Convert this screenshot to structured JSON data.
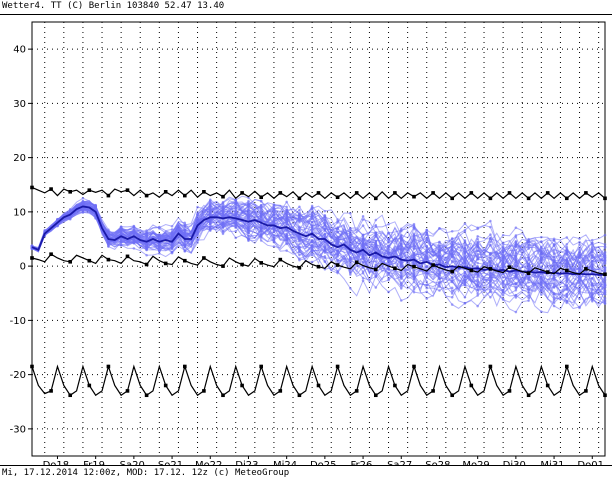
{
  "header": {
    "title": "Wetter4. TT (C) Berlin 103840 52.47 13.40"
  },
  "footer": {
    "text": "Mi, 17.12.2014 12:00z, MOD: 17.12. 12z (c) MeteoGroup"
  },
  "colors": {
    "ensemble": "#6f6ff5",
    "ensemble_mean": "#1a1aa8",
    "climate": "#000000",
    "grid": "#000000"
  },
  "chart_data": {
    "type": "line",
    "title": "",
    "xlabel": "",
    "ylabel": "",
    "ylim": [
      -35,
      45
    ],
    "yticks": [
      -30,
      -20,
      -10,
      0,
      10,
      20,
      30,
      40
    ],
    "x_range": [
      0,
      90
    ],
    "x_unit": "steps of 6 hours from Mi 17.12.2014 12:00z",
    "day_labels": [
      {
        "label": "Do18.",
        "x": 4
      },
      {
        "label": "Fr19.",
        "x": 10
      },
      {
        "label": "Sa20.",
        "x": 16
      },
      {
        "label": "So21.",
        "x": 22
      },
      {
        "label": "Mo22.",
        "x": 28
      },
      {
        "label": "Di23.",
        "x": 34
      },
      {
        "label": "Mi24.",
        "x": 40
      },
      {
        "label": "Do25.",
        "x": 46
      },
      {
        "label": "Fr26.",
        "x": 52
      },
      {
        "label": "Sa27.",
        "x": 58
      },
      {
        "label": "So28.",
        "x": 64
      },
      {
        "label": "Mo29.",
        "x": 70
      },
      {
        "label": "Di30.",
        "x": 76
      },
      {
        "label": "Mi31.",
        "x": 82
      },
      {
        "label": "Do01.",
        "x": 88
      }
    ],
    "grid": true,
    "series": [
      {
        "role": "climate-high",
        "values": [
          14.5,
          14,
          13.5,
          14.2,
          13,
          14.2,
          13.7,
          14,
          13.2,
          14,
          13.6,
          14,
          13,
          14.2,
          13.7,
          14,
          13,
          14,
          13,
          13.5,
          12.7,
          13.7,
          13,
          14,
          13,
          14,
          12.7,
          13.7,
          13,
          13.5,
          12.8,
          14,
          12.5,
          13.5,
          12.8,
          13.8,
          12.7,
          13.5,
          12.5,
          13.5,
          12.8,
          13.7,
          12.5,
          13.5,
          12.7,
          13.5,
          12.5,
          13.5,
          12.7,
          13.5,
          12.5,
          13.5,
          12.5,
          13.5,
          12.5,
          13.7,
          12.5,
          13.5,
          12.5,
          13.5,
          12.8,
          13.5,
          12.5,
          13.5,
          12.5,
          13.5,
          12.5,
          13.5,
          12.5,
          13.5,
          12.5,
          13.5,
          12.5,
          13.5,
          12.5,
          13.5,
          12.5,
          13.5,
          12.5,
          13.5,
          12.5,
          13.5,
          12.5,
          13.5,
          12.5,
          13.5,
          12.5,
          13.5,
          12.7,
          13.5,
          12.5
        ]
      },
      {
        "role": "climate-low",
        "values": [
          1.5,
          1.2,
          0.8,
          2.2,
          1.5,
          1,
          0.8,
          2,
          1.5,
          1,
          0.5,
          2,
          1.2,
          1,
          0.5,
          1.8,
          1,
          0.8,
          0.3,
          1.8,
          1,
          0.5,
          0.3,
          1.7,
          1,
          0.5,
          0.2,
          1.5,
          0.8,
          0.3,
          0,
          1.5,
          0.8,
          0.3,
          0,
          1.4,
          0.6,
          0.2,
          -0.1,
          1.2,
          0.5,
          0,
          -0.3,
          1,
          0.3,
          -0.1,
          -0.4,
          0.8,
          0.2,
          -0.2,
          -0.5,
          0.7,
          0.1,
          -0.3,
          -0.6,
          0.5,
          0,
          -0.4,
          -0.8,
          0.3,
          -0.1,
          -0.5,
          -0.9,
          0.2,
          -0.3,
          -0.7,
          -1,
          0,
          -0.4,
          -0.8,
          -1.1,
          -0.1,
          -0.5,
          -0.9,
          -1.2,
          -0.2,
          -0.6,
          -1,
          -1.3,
          -0.3,
          -0.7,
          -1.1,
          -1.4,
          -0.4,
          -0.8,
          -1.2,
          -1.5,
          -0.5,
          -0.9,
          -1.3,
          -1.5
        ]
      },
      {
        "role": "climate-min",
        "values": [
          -18.5,
          -22,
          -23.5,
          -23,
          -18.5,
          -22,
          -23.8,
          -23,
          -18.5,
          -22,
          -23.8,
          -23,
          -18.5,
          -22,
          -23.8,
          -23,
          -18.5,
          -22,
          -23.8,
          -23,
          -18.5,
          -22,
          -23.8,
          -23,
          -18.5,
          -22,
          -23.8,
          -23,
          -18.5,
          -22,
          -23.8,
          -23,
          -18.5,
          -22,
          -23.8,
          -23,
          -18.5,
          -22,
          -23.8,
          -23,
          -18.5,
          -22,
          -23.8,
          -23,
          -18.5,
          -22,
          -23.8,
          -23,
          -18.5,
          -22,
          -23.8,
          -23,
          -18.5,
          -22,
          -23.8,
          -23,
          -18.5,
          -22,
          -23.8,
          -23,
          -18.5,
          -22,
          -23.8,
          -23,
          -18.5,
          -22,
          -23.8,
          -23,
          -18.5,
          -22,
          -23.8,
          -23,
          -18.5,
          -22,
          -23.8,
          -23,
          -18.5,
          -22,
          -23.8,
          -23,
          -18.5,
          -22,
          -23.8,
          -23,
          -18.5,
          -22,
          -23.8,
          -23,
          -18.5,
          -22,
          -23.8
        ]
      },
      {
        "role": "ensemble-mean",
        "values": [
          3.5,
          3,
          6,
          7,
          8,
          9,
          9.5,
          10.5,
          11,
          10.8,
          10,
          7,
          5,
          4.8,
          5.5,
          5,
          5.5,
          4.8,
          4.5,
          5,
          4.5,
          4.8,
          4.5,
          6,
          5,
          5,
          7.5,
          8.5,
          9,
          9,
          8.8,
          9,
          8.8,
          8.5,
          8.2,
          8.5,
          8,
          7.5,
          7.5,
          7,
          7.2,
          6.5,
          6,
          5.5,
          6,
          5,
          5,
          4,
          3.5,
          4,
          3,
          2.5,
          3,
          2,
          2.5,
          1.8,
          1.5,
          1.8,
          1.2,
          1,
          1.2,
          0.5,
          0.8,
          0.2,
          0.3,
          -0.2,
          0,
          -0.3,
          -0.2,
          -0.5,
          -0.4,
          -0.7,
          -0.5,
          -0.8,
          -0.7,
          -1,
          -0.8,
          -1,
          -1,
          -1.2,
          -1.1,
          -1.3,
          -1.2,
          -1.4,
          -1.3,
          -1.5,
          -1.4,
          -1.5,
          -1.5,
          -1.6,
          -1.6
        ]
      }
    ],
    "ensemble": {
      "members": 50,
      "spread_start": 0.3,
      "spread_end": 5.5
    }
  }
}
